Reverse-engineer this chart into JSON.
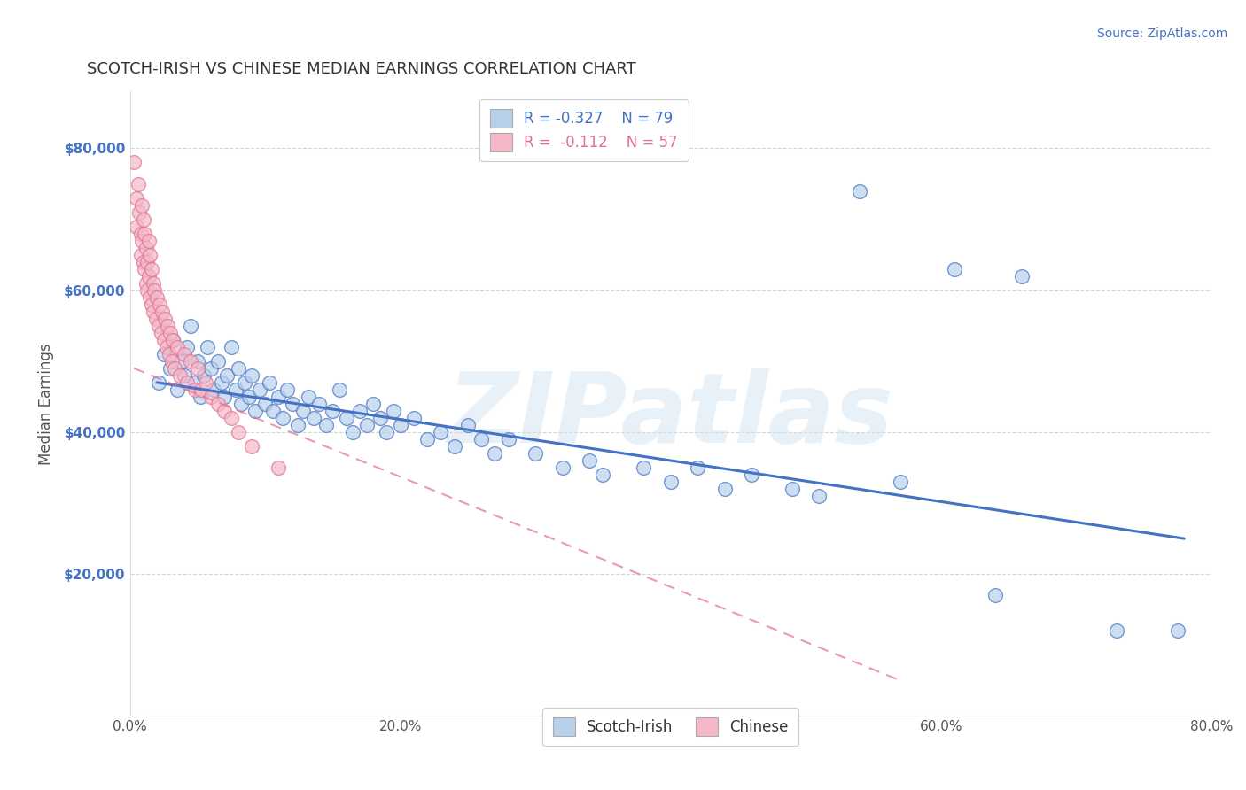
{
  "title": "SCOTCH-IRISH VS CHINESE MEDIAN EARNINGS CORRELATION CHART",
  "source": "Source: ZipAtlas.com",
  "xlabel": "",
  "ylabel": "Median Earnings",
  "xlim": [
    0.0,
    0.8
  ],
  "ylim": [
    0,
    88000
  ],
  "yticks": [
    20000,
    40000,
    60000,
    80000
  ],
  "ytick_labels": [
    "$20,000",
    "$40,000",
    "$60,000",
    "$80,000"
  ],
  "xticks": [
    0.0,
    0.2,
    0.4,
    0.6,
    0.8
  ],
  "xtick_labels": [
    "0.0%",
    "20.0%",
    "40.0%",
    "60.0%",
    "80.0%"
  ],
  "scotch_irish_color": "#b8d0ea",
  "scotch_irish_line_color": "#4472c4",
  "chinese_color": "#f4b8c8",
  "chinese_line_color": "#e07090",
  "watermark": "ZIPatlas",
  "background_color": "#ffffff",
  "grid_color": "#cccccc",
  "scotch_irish_x": [
    0.021,
    0.025,
    0.03,
    0.032,
    0.035,
    0.038,
    0.04,
    0.042,
    0.045,
    0.048,
    0.05,
    0.052,
    0.055,
    0.057,
    0.06,
    0.062,
    0.065,
    0.068,
    0.07,
    0.072,
    0.075,
    0.078,
    0.08,
    0.082,
    0.085,
    0.088,
    0.09,
    0.093,
    0.096,
    0.1,
    0.103,
    0.106,
    0.11,
    0.113,
    0.116,
    0.12,
    0.124,
    0.128,
    0.132,
    0.136,
    0.14,
    0.145,
    0.15,
    0.155,
    0.16,
    0.165,
    0.17,
    0.175,
    0.18,
    0.185,
    0.19,
    0.195,
    0.2,
    0.21,
    0.22,
    0.23,
    0.24,
    0.25,
    0.26,
    0.27,
    0.28,
    0.3,
    0.32,
    0.34,
    0.35,
    0.38,
    0.4,
    0.42,
    0.44,
    0.46,
    0.49,
    0.51,
    0.54,
    0.57,
    0.61,
    0.64,
    0.66,
    0.73,
    0.775
  ],
  "scotch_irish_y": [
    47000,
    51000,
    49000,
    53000,
    46000,
    50000,
    48000,
    52000,
    55000,
    47000,
    50000,
    45000,
    48000,
    52000,
    49000,
    46000,
    50000,
    47000,
    45000,
    48000,
    52000,
    46000,
    49000,
    44000,
    47000,
    45000,
    48000,
    43000,
    46000,
    44000,
    47000,
    43000,
    45000,
    42000,
    46000,
    44000,
    41000,
    43000,
    45000,
    42000,
    44000,
    41000,
    43000,
    46000,
    42000,
    40000,
    43000,
    41000,
    44000,
    42000,
    40000,
    43000,
    41000,
    42000,
    39000,
    40000,
    38000,
    41000,
    39000,
    37000,
    39000,
    37000,
    35000,
    36000,
    34000,
    35000,
    33000,
    35000,
    32000,
    34000,
    32000,
    31000,
    74000,
    33000,
    63000,
    17000,
    62000,
    12000,
    12000
  ],
  "chinese_x": [
    0.003,
    0.005,
    0.005,
    0.006,
    0.007,
    0.008,
    0.008,
    0.009,
    0.009,
    0.01,
    0.01,
    0.011,
    0.011,
    0.012,
    0.012,
    0.013,
    0.013,
    0.014,
    0.014,
    0.015,
    0.015,
    0.016,
    0.016,
    0.017,
    0.017,
    0.018,
    0.019,
    0.02,
    0.021,
    0.022,
    0.023,
    0.024,
    0.025,
    0.026,
    0.027,
    0.028,
    0.029,
    0.03,
    0.031,
    0.032,
    0.033,
    0.035,
    0.037,
    0.04,
    0.042,
    0.045,
    0.048,
    0.05,
    0.053,
    0.056,
    0.06,
    0.065,
    0.07,
    0.075,
    0.08,
    0.09,
    0.11
  ],
  "chinese_y": [
    78000,
    73000,
    69000,
    75000,
    71000,
    68000,
    65000,
    72000,
    67000,
    70000,
    64000,
    68000,
    63000,
    66000,
    61000,
    64000,
    60000,
    67000,
    62000,
    65000,
    59000,
    63000,
    58000,
    61000,
    57000,
    60000,
    56000,
    59000,
    55000,
    58000,
    54000,
    57000,
    53000,
    56000,
    52000,
    55000,
    51000,
    54000,
    50000,
    53000,
    49000,
    52000,
    48000,
    51000,
    47000,
    50000,
    46000,
    49000,
    46000,
    47000,
    45000,
    44000,
    43000,
    42000,
    40000,
    38000,
    35000
  ]
}
